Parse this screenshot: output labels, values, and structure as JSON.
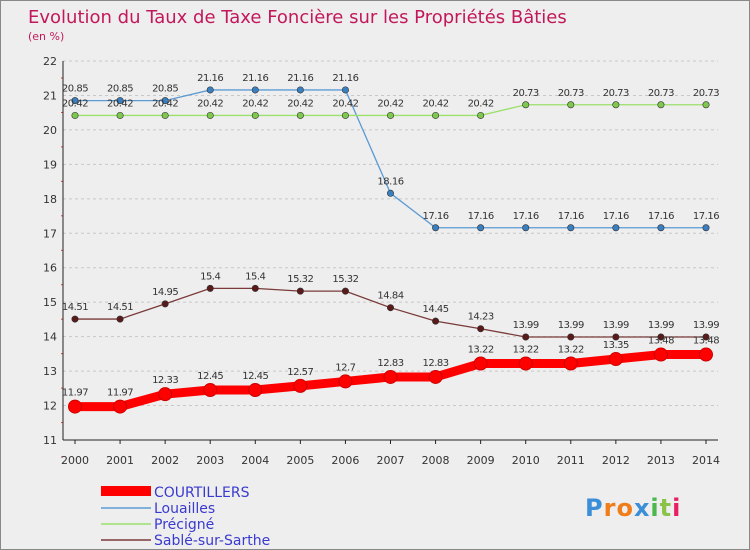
{
  "chart_data": {
    "type": "line",
    "title": "Evolution du Taux de Taxe Foncière sur les Propriétés Bâties",
    "subtitle": "(en %)",
    "xlabel": "",
    "ylabel": "",
    "ylim": [
      11,
      22
    ],
    "yticks": [
      "11",
      "12",
      "13",
      "14",
      "15",
      "16",
      "17",
      "18",
      "19",
      "20",
      "21",
      "22"
    ],
    "categories": [
      "2000",
      "2001",
      "2002",
      "2003",
      "2004",
      "2005",
      "2006",
      "2007",
      "2008",
      "2009",
      "2010",
      "2011",
      "2012",
      "2013",
      "2014"
    ],
    "series": [
      {
        "name": "Louailles",
        "color": "#5b9bd5",
        "marker_color": "#3a7fc0",
        "values": [
          20.85,
          20.85,
          20.85,
          21.16,
          21.16,
          21.16,
          21.16,
          18.16,
          17.16,
          17.16,
          17.16,
          17.16,
          17.16,
          17.16,
          17.16
        ],
        "labels": [
          "20.85",
          "20.85",
          "20.85",
          "21.16",
          "21.16",
          "21.16",
          "21.16",
          "18.16",
          "17.16",
          "17.16",
          "17.16",
          "17.16",
          "17.16",
          "17.16",
          "17.16"
        ]
      },
      {
        "name": "Précigné",
        "color": "#9be06b",
        "marker_color": "#7ec850",
        "values": [
          20.42,
          20.42,
          20.42,
          20.42,
          20.42,
          20.42,
          20.42,
          20.42,
          20.42,
          20.42,
          20.73,
          20.73,
          20.73,
          20.73,
          20.73
        ],
        "labels": [
          "20.42",
          "20.42",
          "20.42",
          "20.42",
          "20.42",
          "20.42",
          "20.42",
          "20.42",
          "20.42",
          "20.42",
          "20.73",
          "20.73",
          "20.73",
          "20.73",
          "20.73"
        ]
      },
      {
        "name": "Sablé-sur-Sarthe",
        "color": "#7a3a3a",
        "marker_color": "#5a1a1a",
        "values": [
          14.51,
          14.51,
          14.95,
          15.4,
          15.4,
          15.32,
          15.32,
          14.84,
          14.45,
          14.23,
          13.99,
          13.99,
          13.99,
          13.99,
          13.99
        ],
        "labels": [
          "14.51",
          "14.51",
          "14.95",
          "15.4",
          "15.4",
          "15.32",
          "15.32",
          "14.84",
          "14.45",
          "14.23",
          "13.99",
          "13.99",
          "13.99",
          "13.99",
          "13.99"
        ]
      },
      {
        "name": "COURTILLERS",
        "color": "#ff0000",
        "marker_color": "#ff0000",
        "thick": true,
        "values": [
          11.97,
          11.97,
          12.33,
          12.45,
          12.45,
          12.57,
          12.7,
          12.83,
          12.83,
          13.22,
          13.22,
          13.22,
          13.35,
          13.48,
          13.48
        ],
        "labels": [
          "11.97",
          "11.97",
          "12.33",
          "12.45",
          "12.45",
          "12.57",
          "12.7",
          "12.83",
          "12.83",
          "13.22",
          "13.22",
          "13.22",
          "13.35",
          "13.48",
          "13.48"
        ]
      }
    ],
    "legend": [
      "COURTILLERS",
      "Louailles",
      "Précigné",
      "Sablé-sur-Sarthe"
    ],
    "legend_position": "bottom-left",
    "grid": "horizontal-dashed"
  },
  "logo": {
    "text": "Proxiti"
  }
}
